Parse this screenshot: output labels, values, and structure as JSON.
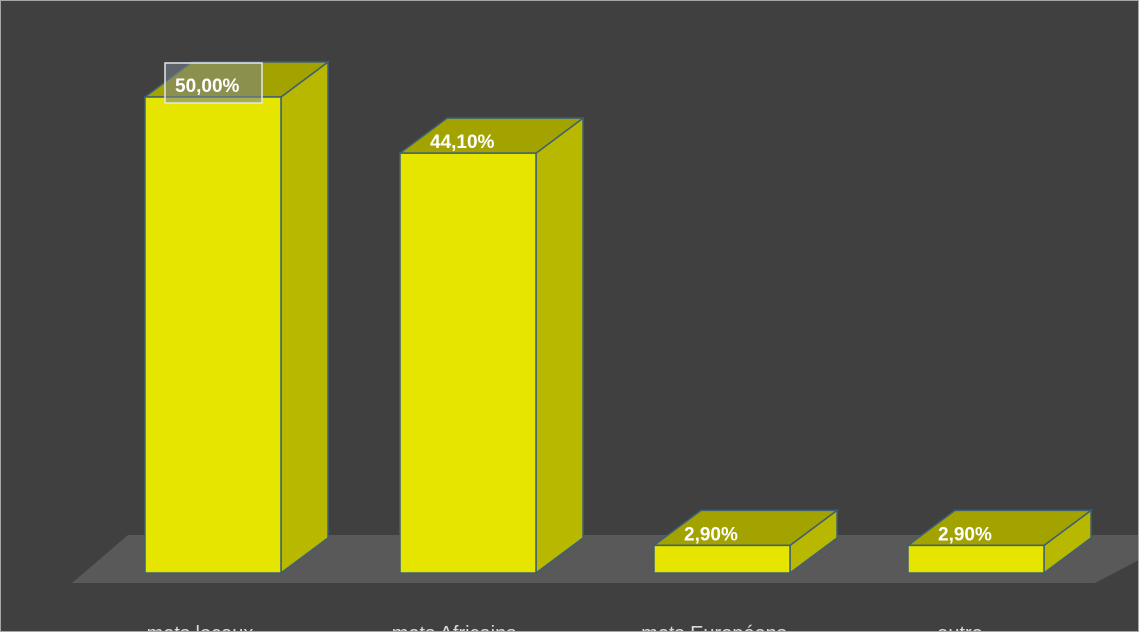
{
  "chart_data": {
    "type": "bar",
    "categories": [
      "mets locaux",
      "mets Africains",
      "mets Européens",
      "autre"
    ],
    "values": [
      50.0,
      44.1,
      2.9,
      2.9
    ],
    "data_labels": [
      "50,00%",
      "44,10%",
      "2,90%",
      "2,90%"
    ],
    "unit": "%",
    "title": "",
    "xlabel": "",
    "ylabel": "",
    "ylim": [
      0,
      50
    ],
    "grid": false,
    "legend": "none",
    "style": "3d-column",
    "highlighted_label_index": 0
  },
  "colors": {
    "background": "#404040",
    "frame": "#a6a6a6",
    "bar_front": "#e5e500",
    "bar_top": "#a3a300",
    "bar_side": "#b8b800",
    "bar_outline": "#3f5f74",
    "floor": "#595959",
    "data_label_text": "#ffffff",
    "category_text": "#d9d9d9"
  }
}
